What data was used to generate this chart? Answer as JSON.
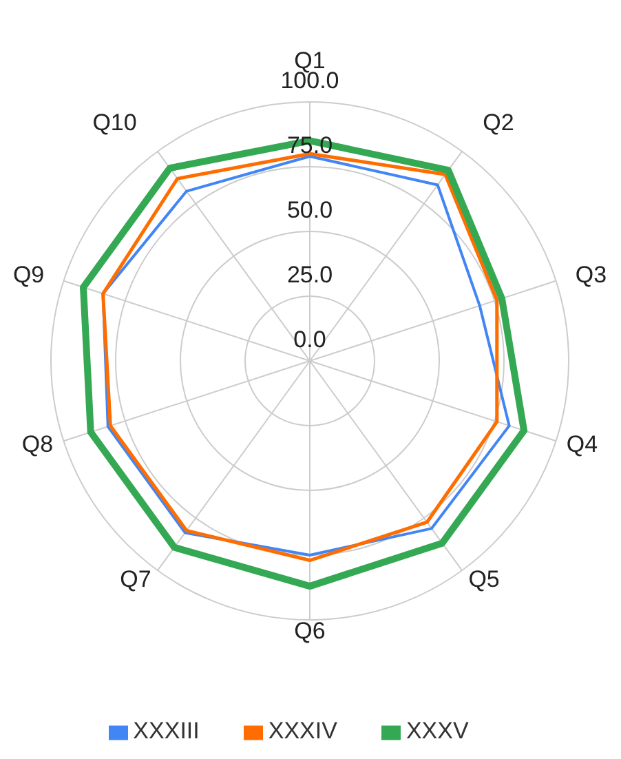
{
  "chart_data": {
    "type": "radar",
    "categories": [
      "Q1",
      "Q2",
      "Q3",
      "Q4",
      "Q5",
      "Q6",
      "Q7",
      "Q8",
      "Q9",
      "Q10"
    ],
    "series": [
      {
        "name": "XXXIII",
        "color": "#4285f4",
        "values": [
          79,
          84,
          69,
          81,
          80,
          75,
          82,
          82,
          84,
          81
        ]
      },
      {
        "name": "XXXIV",
        "color": "#ff6d00",
        "values": [
          80,
          89,
          76,
          76,
          77,
          77,
          81,
          81,
          84,
          87
        ]
      },
      {
        "name": "XXXV",
        "color": "#34a853",
        "values": [
          85,
          91,
          78,
          87,
          87,
          87,
          89,
          89,
          92,
          92
        ]
      }
    ],
    "ylim": [
      0,
      100
    ],
    "yticks": [
      {
        "value": 0,
        "label": "0.0"
      },
      {
        "value": 25,
        "label": "25.0"
      },
      {
        "value": 50,
        "label": "50.0"
      },
      {
        "value": 75,
        "label": "75.0"
      },
      {
        "value": 100,
        "label": "100.0"
      }
    ],
    "grid": true,
    "legend": "bottom",
    "marker": "none",
    "line_style": "solid"
  }
}
